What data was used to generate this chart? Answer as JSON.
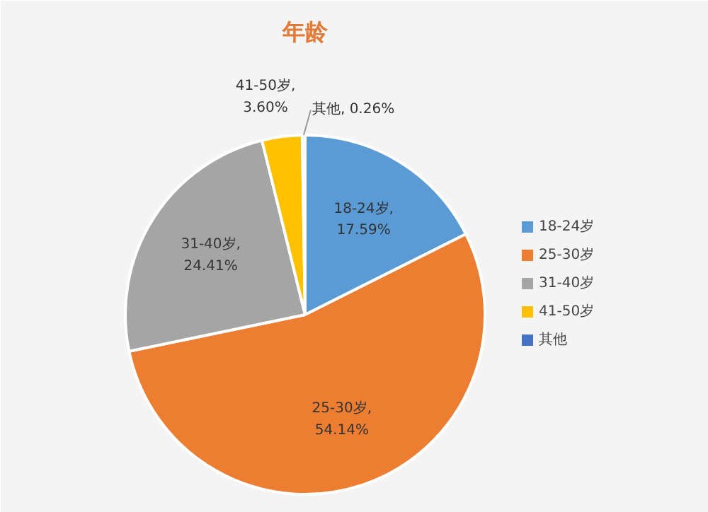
{
  "chart_data": {
    "type": "pie",
    "title": "年龄",
    "categories": [
      "18-24岁",
      "25-30岁",
      "31-40岁",
      "41-50岁",
      "其他"
    ],
    "values": [
      17.59,
      54.14,
      24.41,
      3.6,
      0.26
    ],
    "colors": [
      "#5b9bd5",
      "#ed7d31",
      "#a5a5a5",
      "#ffc000",
      "#4472c4"
    ],
    "value_labels": [
      "18-24岁,\n17.59%",
      "25-30岁,\n54.14%",
      "31-40岁,\n24.41%",
      "41-50岁,\n3.60%",
      "其他, 0.26%"
    ],
    "legend": "right"
  }
}
